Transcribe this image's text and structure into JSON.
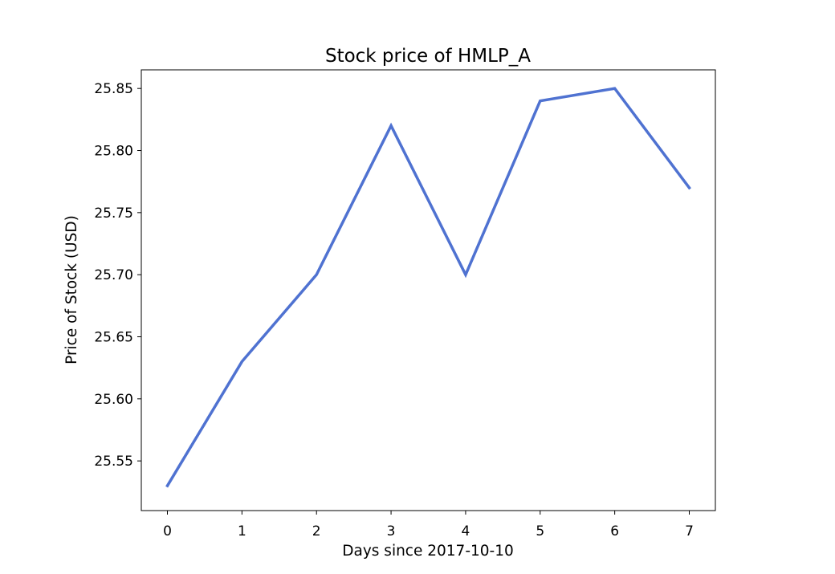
{
  "chart_data": {
    "type": "line",
    "title": "Stock price of HMLP_A",
    "xlabel": "Days since 2017-10-10",
    "ylabel": "Price of Stock (USD)",
    "x": [
      0,
      1,
      2,
      3,
      4,
      5,
      6,
      7
    ],
    "series": [
      {
        "values": [
          25.53,
          25.63,
          25.7,
          25.82,
          25.7,
          25.84,
          25.85,
          25.77
        ]
      }
    ],
    "xlim": [
      -0.35,
      7.35
    ],
    "ylim": [
      25.51,
      25.865
    ],
    "xticks": [
      0,
      1,
      2,
      3,
      4,
      5,
      6,
      7
    ],
    "xtick_labels": [
      "0",
      "1",
      "2",
      "3",
      "4",
      "5",
      "6",
      "7"
    ],
    "yticks": [
      25.55,
      25.6,
      25.65,
      25.7,
      25.75,
      25.8,
      25.85
    ],
    "ytick_labels": [
      "25.55",
      "25.60",
      "25.65",
      "25.70",
      "25.75",
      "25.80",
      "25.85"
    ],
    "grid": false,
    "line_color": "#4f72d1"
  }
}
